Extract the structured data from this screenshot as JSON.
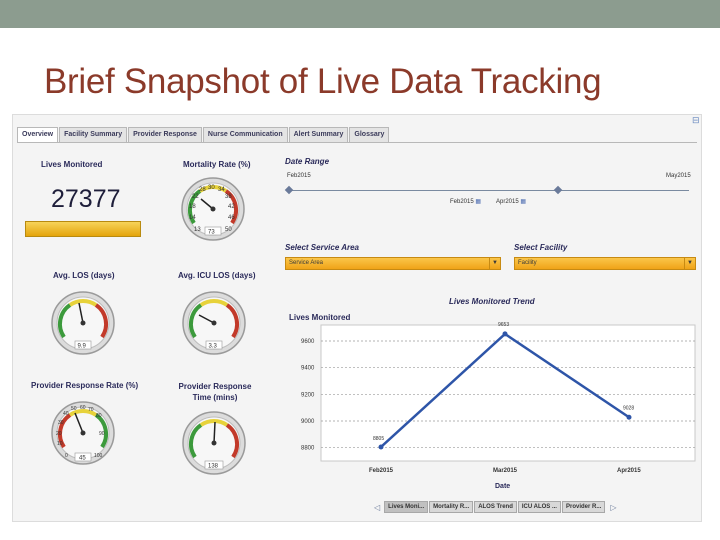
{
  "slide": {
    "title": "Brief Snapshot of Live Data Tracking",
    "top_bar_color": "#8c9c8f",
    "title_color": "#8b3a2a"
  },
  "tabs": [
    {
      "label": "Overview",
      "active": true
    },
    {
      "label": "Facility Summary",
      "active": false
    },
    {
      "label": "Provider Response",
      "active": false
    },
    {
      "label": "Nurse Communication",
      "active": false
    },
    {
      "label": "Alert Summary",
      "active": false
    },
    {
      "label": "Glossary",
      "active": false
    }
  ],
  "widgets": {
    "lives_monitored": {
      "label": "Lives Monitored",
      "value": "27377"
    },
    "mortality_rate": {
      "label": "Mortality Rate (%)",
      "ticks": [
        "13",
        "14",
        "18",
        "22",
        "28",
        "30",
        "34",
        "38",
        "42",
        "46",
        "50"
      ],
      "readout": "73"
    },
    "avg_los": {
      "label": "Avg. LOS (days)",
      "readout": "9.9"
    },
    "avg_icu_los": {
      "label": "Avg. ICU LOS (days)",
      "readout": "3.3"
    },
    "provider_response_rate": {
      "label": "Provider Response Rate (%)",
      "ticks": [
        "0",
        "10",
        "20",
        "30",
        "40",
        "50",
        "60",
        "70",
        "80",
        "90",
        "100"
      ],
      "readout": "45"
    },
    "provider_response_time": {
      "label": "Provider Response Time (mins)",
      "readout": "138"
    }
  },
  "date_range": {
    "title": "Date Range",
    "min_label": "Feb2015",
    "max_label": "May2015",
    "from_value": "Feb2015",
    "to_value": "Apr2015"
  },
  "filters": {
    "service_area": {
      "title": "Select Service Area",
      "value": "Service Area"
    },
    "facility": {
      "title": "Select Facility",
      "value": "Facility"
    }
  },
  "chart_data": {
    "type": "line",
    "title": "Lives Monitored Trend",
    "ylabel": "Lives Monitored",
    "xlabel": "Date",
    "categories": [
      "Feb2015",
      "Mar2015",
      "Apr2015"
    ],
    "values": [
      8805,
      9653,
      9028
    ],
    "point_labels": [
      "8805",
      "9653",
      "9028"
    ],
    "yticks": [
      8800,
      9000,
      9200,
      9400,
      9600
    ],
    "ylim": [
      8700,
      9720
    ],
    "line_color": "#2e55a8"
  },
  "bottom_tabs": [
    {
      "label": "Lives Moni...",
      "active": true
    },
    {
      "label": "Mortality R...",
      "active": false
    },
    {
      "label": "ALOS Trend",
      "active": false
    },
    {
      "label": "ICU ALOS ...",
      "active": false
    },
    {
      "label": "Provider R...",
      "active": false
    }
  ],
  "icons": {
    "calendar": "calendar-icon",
    "dropdown": "chevron-down-icon",
    "prev": "chevron-left-icon",
    "next": "chevron-right-icon"
  }
}
